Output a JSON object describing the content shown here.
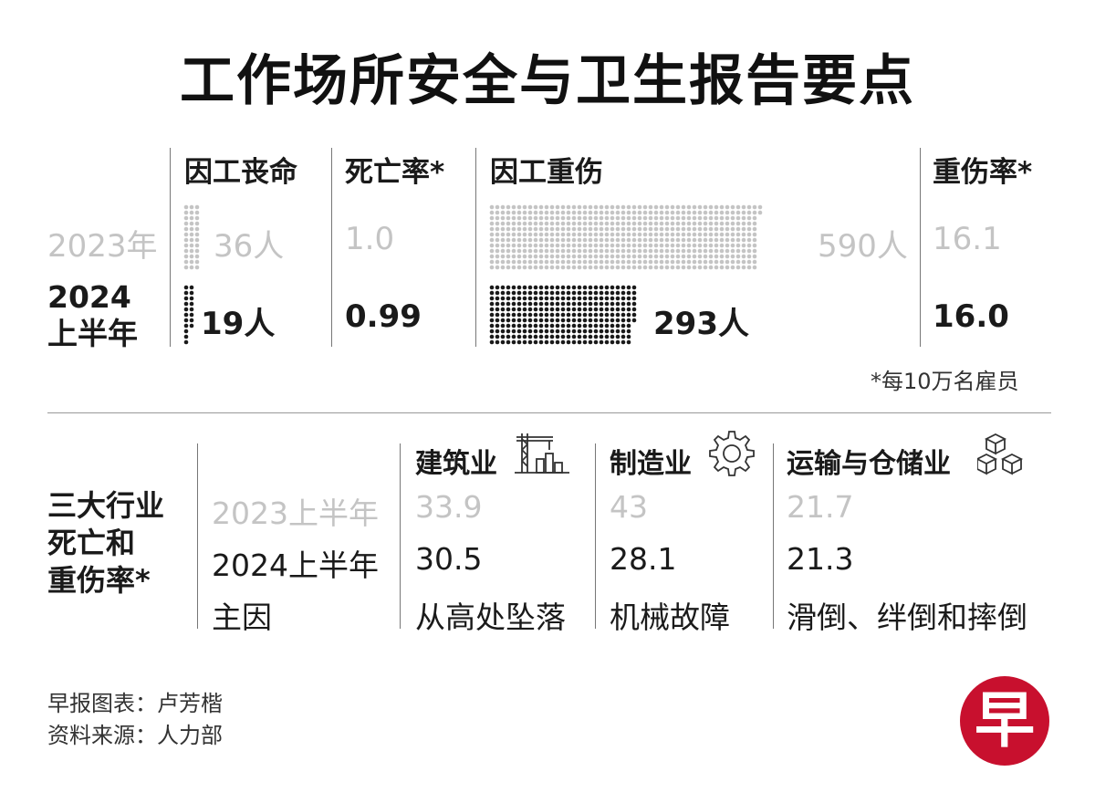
{
  "title": "工作场所安全与卫生报告要点",
  "top_table": {
    "headers": {
      "deaths": "因工丧命",
      "death_rate": "死亡率*",
      "injuries": "因工重伤",
      "injury_rate": "重伤率*"
    },
    "rows": [
      {
        "year": "2023年",
        "deaths": "36人",
        "death_rate": "1.0",
        "injuries": "590人",
        "injury_rate": "16.1",
        "deaths_value": 36,
        "injuries_value": 590
      },
      {
        "year_line1": "2024",
        "year_line2": "上半年",
        "deaths": "19人",
        "death_rate": "0.99",
        "injuries": "293人",
        "injury_rate": "16.0",
        "deaths_value": 19,
        "injuries_value": 293
      }
    ],
    "footnote": "*每10万名雇员"
  },
  "industry_table": {
    "row_title_lines": [
      "三大行业",
      "死亡和",
      "重伤率*"
    ],
    "row_labels": [
      "2023上半年",
      "2024上半年",
      "主因"
    ],
    "columns": [
      {
        "name": "建筑业",
        "icon": "crane-icon",
        "values": [
          "33.9",
          "30.5"
        ],
        "cause": "从高处坠落"
      },
      {
        "name": "制造业",
        "icon": "gear-icon",
        "values": [
          "43",
          "28.1"
        ],
        "cause": "机械故障"
      },
      {
        "name": "运输与仓储业",
        "icon": "boxes-icon",
        "values": [
          "21.7",
          "21.3"
        ],
        "cause": "滑倒、绊倒和摔倒"
      }
    ]
  },
  "footer": {
    "chart_credit": "早报图表：卢芳楷",
    "source": "资料来源：人力部"
  },
  "logo_text": "早",
  "colors": {
    "light": "#c4c4c4",
    "dark": "#1a1a1a",
    "logo_red": "#c8102e"
  }
}
